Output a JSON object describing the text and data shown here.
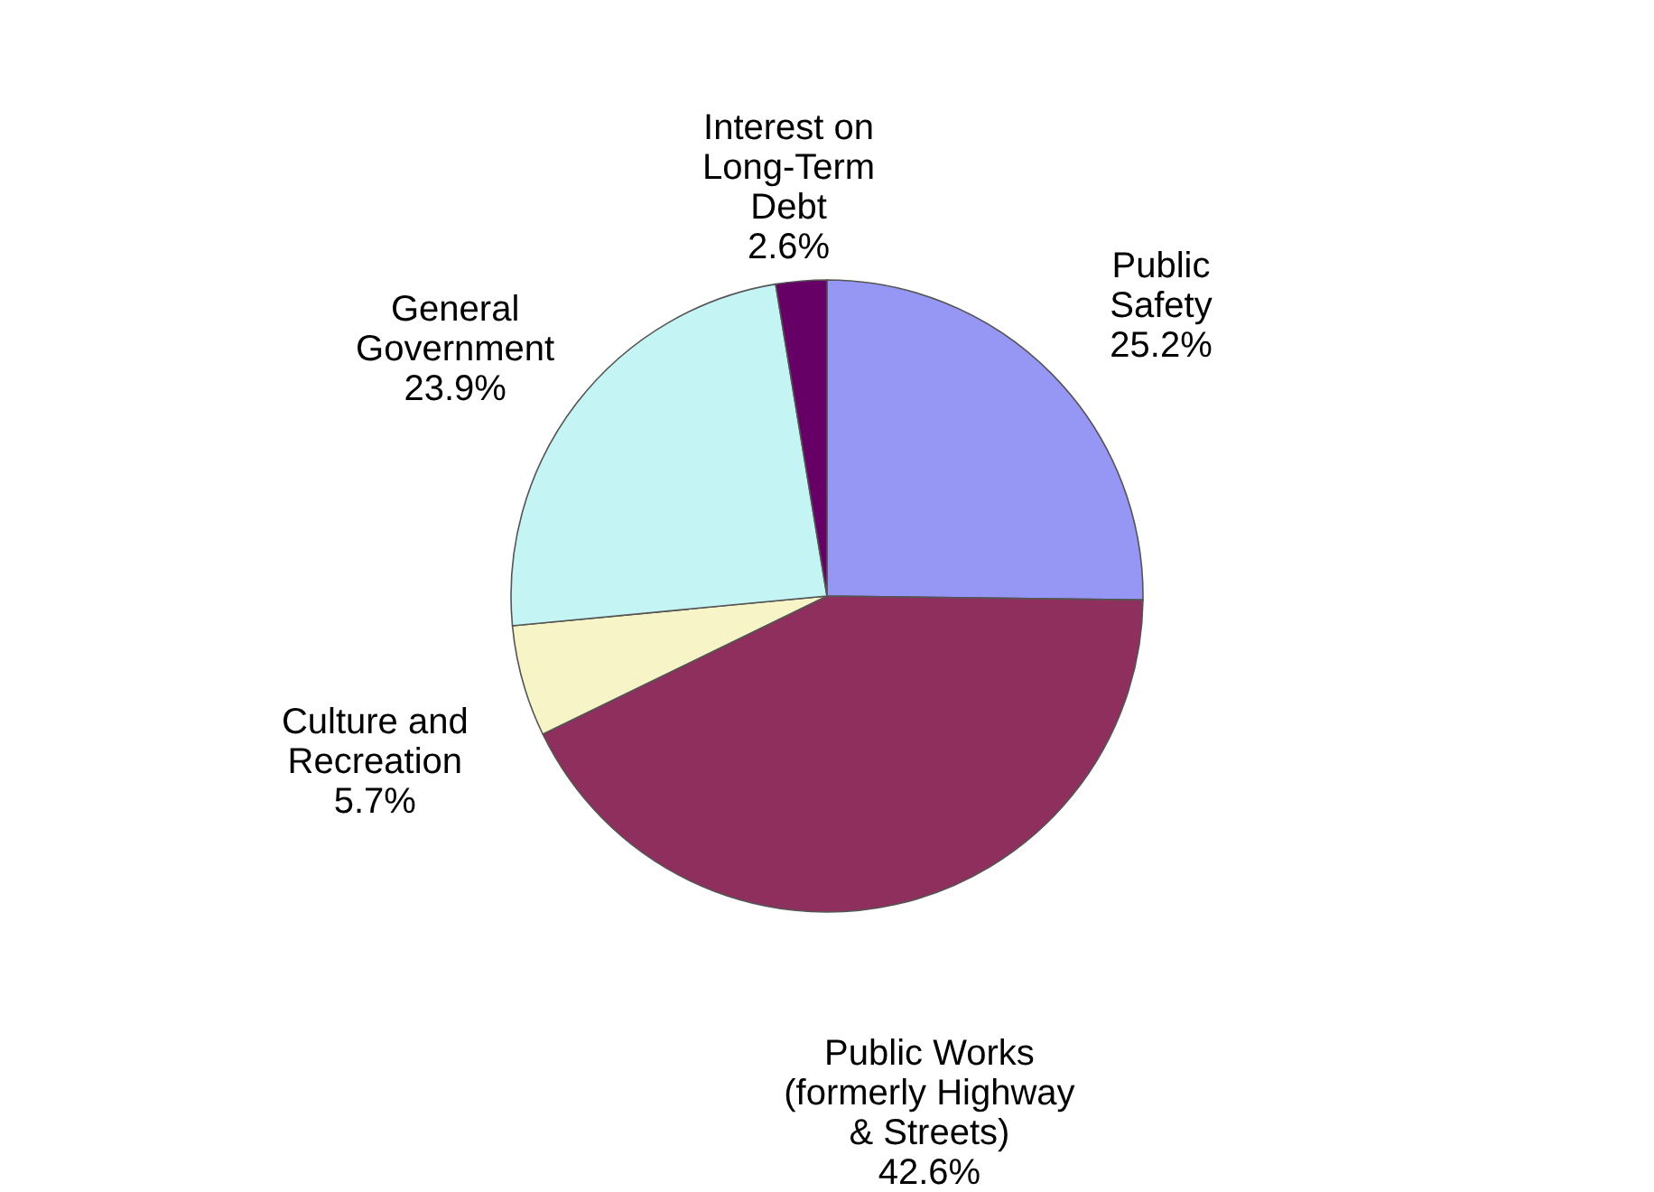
{
  "chart_data": {
    "type": "pie",
    "categories": [
      "Public\nSafety",
      "Public Works\n(formerly Highway\n& Streets)",
      "Culture and\nRecreation",
      "General\nGovernment",
      "Interest on\nLong-Term\nDebt"
    ],
    "values": [
      25.2,
      42.6,
      5.7,
      23.9,
      2.6
    ],
    "value_labels": [
      "25.2%",
      "42.6%",
      "5.7%",
      "23.9%",
      "2.6%"
    ],
    "colors": [
      "#9696f5",
      "#8e2f5e",
      "#f7f5c7",
      "#c4f4f4",
      "#660066"
    ],
    "legend": false
  }
}
